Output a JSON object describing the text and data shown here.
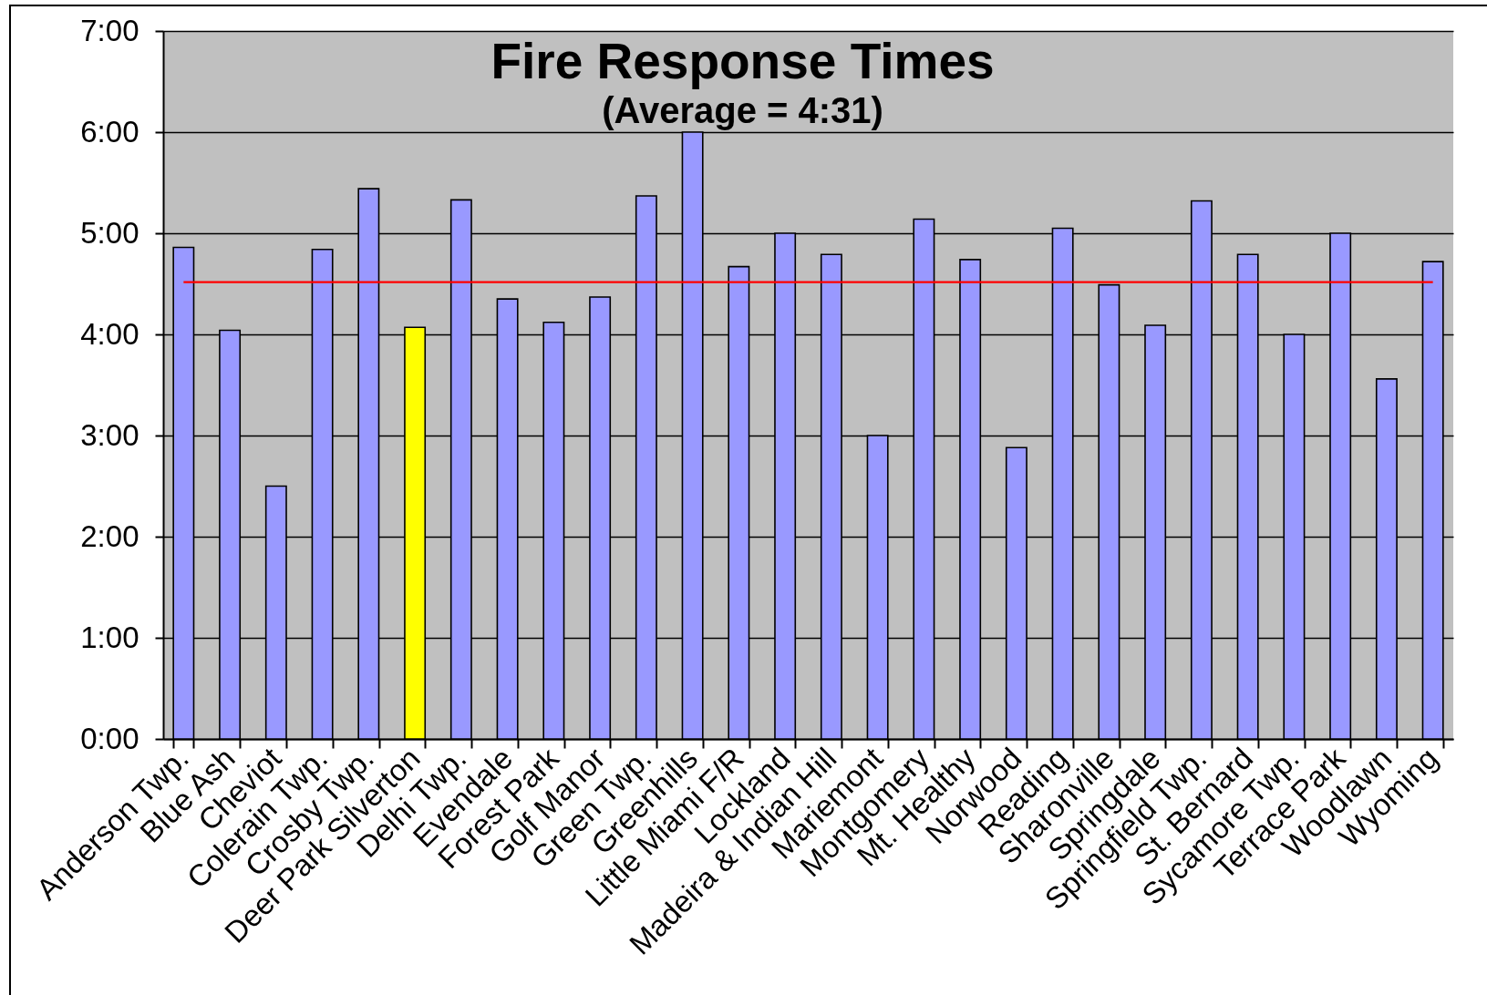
{
  "chart_data": {
    "type": "bar",
    "title": "Fire Response Times",
    "subtitle": "(Average = 4:31)",
    "categories": [
      "Anderson Twp.",
      "Blue Ash",
      "Cheviot",
      "Colerain Twp.",
      "Crosby Twp.",
      "Deer Park Silverton",
      "Delhi Twp.",
      "Evendale",
      "Forest Park",
      "Golf Manor",
      "Green Twp.",
      "Greenhills",
      "Little Miami F/R",
      "Lockland",
      "Madeira & Indian Hill",
      "Mariemont",
      "Montgomery",
      "Mt. Healthy",
      "Norwood",
      "Reading",
      "Sharonville",
      "Springdale",
      "Springfield Twp.",
      "St. Bernard",
      "Sycamore Twp.",
      "Terrace Park",
      "Woodlawn",
      "Wyoming"
    ],
    "values": [
      4.86,
      4.04,
      2.5,
      4.84,
      5.44,
      4.07,
      5.33,
      4.35,
      4.12,
      4.37,
      5.37,
      6.0,
      4.67,
      5.0,
      4.79,
      3.0,
      5.14,
      4.74,
      2.88,
      5.05,
      4.49,
      4.09,
      5.32,
      4.79,
      4.0,
      5.0,
      3.56,
      4.72
    ],
    "colors": [
      "#9999ff",
      "#9999ff",
      "#9999ff",
      "#9999ff",
      "#9999ff",
      "#ffff00",
      "#9999ff",
      "#9999ff",
      "#9999ff",
      "#9999ff",
      "#9999ff",
      "#9999ff",
      "#9999ff",
      "#9999ff",
      "#9999ff",
      "#9999ff",
      "#9999ff",
      "#9999ff",
      "#9999ff",
      "#9999ff",
      "#9999ff",
      "#9999ff",
      "#9999ff",
      "#9999ff",
      "#9999ff",
      "#9999ff",
      "#9999ff",
      "#9999ff"
    ],
    "ylim": [
      0,
      7
    ],
    "yticks": [
      {
        "value": 0,
        "label": "0:00"
      },
      {
        "value": 1,
        "label": "1:00"
      },
      {
        "value": 2,
        "label": "2:00"
      },
      {
        "value": 3,
        "label": "3:00"
      },
      {
        "value": 4,
        "label": "4:00"
      },
      {
        "value": 5,
        "label": "5:00"
      },
      {
        "value": 6,
        "label": "6:00"
      },
      {
        "value": 7,
        "label": "7:00"
      }
    ],
    "grid": "y",
    "ref_lines": [
      {
        "axis": "y",
        "value": 4.517,
        "color": "#ff0000",
        "line_style": "solid"
      }
    ]
  }
}
